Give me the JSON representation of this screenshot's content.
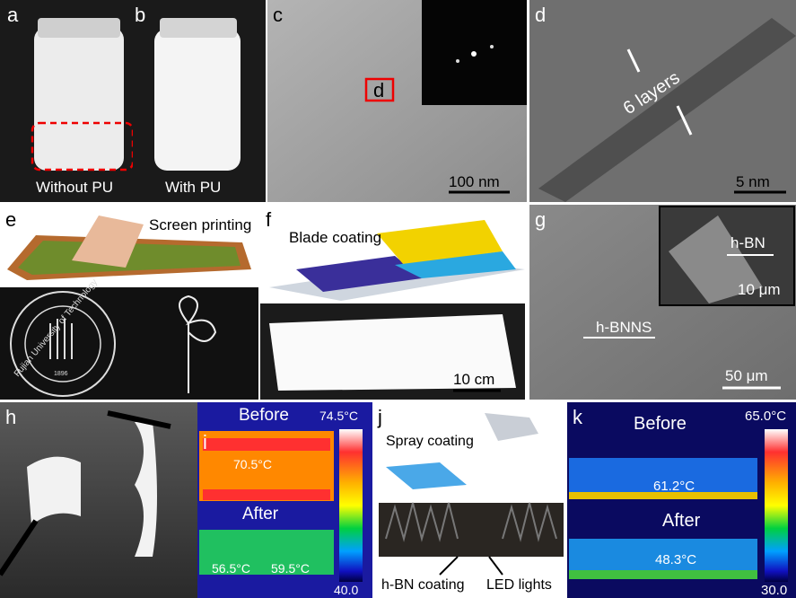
{
  "panels": {
    "a": {
      "label": "a",
      "caption": "Without PU"
    },
    "b": {
      "label": "b",
      "caption": "With PU"
    },
    "c": {
      "label": "c",
      "box_label": "d",
      "scale": "100 nm"
    },
    "d": {
      "label": "d",
      "annotation": "6 layers",
      "scale": "5 nm"
    },
    "e": {
      "label": "e",
      "caption": "Screen printing",
      "logo_text": "Fujian University of Technology",
      "logo_year": "1896"
    },
    "f": {
      "label": "f",
      "caption": "Blade coating",
      "scale": "10 cm"
    },
    "g": {
      "label": "g",
      "inset_label": "h-BN",
      "inset_scale": "10 μm",
      "arrow_label": "h-BNNS",
      "scale": "50 μm"
    },
    "h": {
      "label": "h"
    },
    "i": {
      "label": "i",
      "before": "Before",
      "after": "After",
      "bar_max": "74.5°C",
      "bar_min": "40.0",
      "t_before": "70.5°C",
      "t_after_1": "56.5°C",
      "t_after_2": "59.5°C"
    },
    "j": {
      "label": "j",
      "caption": "Spray coating",
      "label_coating": "h-BN coating",
      "label_led": "LED lights"
    },
    "k": {
      "label": "k",
      "before": "Before",
      "after": "After",
      "bar_max": "65.0°C",
      "bar_min": "30.0",
      "t_before": "61.2°C",
      "t_after": "48.3°C"
    }
  }
}
